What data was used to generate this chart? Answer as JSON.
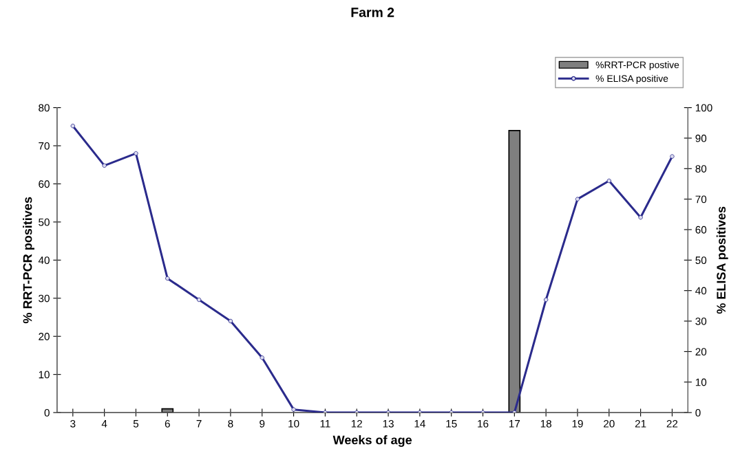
{
  "chart_data": {
    "type": "bar",
    "title": "Farm 2",
    "xlabel": "Weeks of age",
    "ylabel": "% RRT-PCR positives",
    "y2label": "% ELISA positives",
    "categories": [
      "3",
      "4",
      "5",
      "6",
      "7",
      "8",
      "9",
      "10",
      "11",
      "12",
      "13",
      "14",
      "15",
      "16",
      "17",
      "18",
      "19",
      "20",
      "21",
      "22"
    ],
    "series": [
      {
        "name": "%RRT-PCR postive",
        "color": "#7f7f7f",
        "values": [
          0,
          0,
          0,
          1,
          0,
          0,
          0,
          0,
          0,
          0,
          0,
          0,
          0,
          0,
          74,
          0,
          0,
          0,
          0,
          0
        ]
      },
      {
        "name": "% ELISA positive",
        "type": "line",
        "axis": "y2",
        "color": "#2b2b8c",
        "values": [
          94,
          81,
          85,
          44,
          37,
          30,
          18,
          1,
          0,
          0,
          0,
          0,
          0,
          0,
          0,
          37,
          70,
          76,
          64,
          84
        ]
      }
    ],
    "ylim": [
      0,
      80
    ],
    "yticks": [
      0,
      10,
      20,
      30,
      40,
      50,
      60,
      70,
      80
    ],
    "y2lim": [
      0,
      100
    ],
    "y2ticks": [
      0,
      10,
      20,
      30,
      40,
      50,
      60,
      70,
      80,
      90,
      100
    ],
    "grid": false,
    "legend": "top right",
    "marker": "circle",
    "line_style": "solid"
  }
}
